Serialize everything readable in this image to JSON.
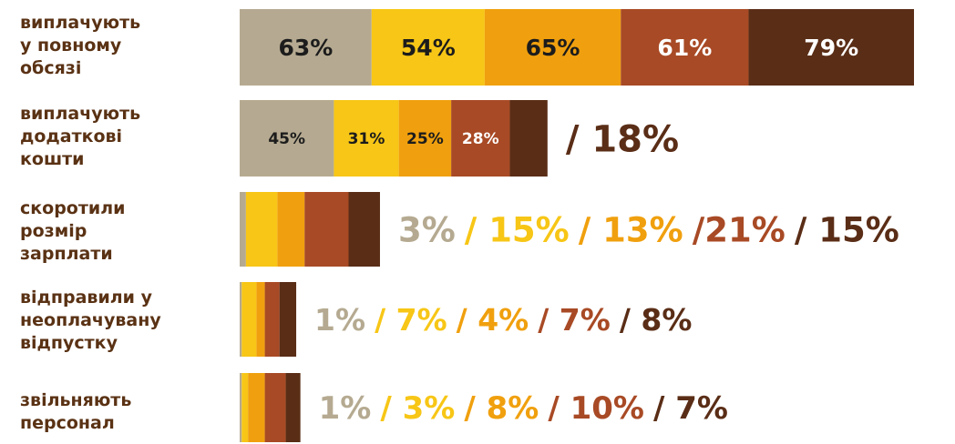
{
  "chart_data": {
    "type": "bar",
    "orientation": "horizontal",
    "stacked": true,
    "colors": [
      "#b5aa91",
      "#f7c616",
      "#f0a00e",
      "#a84a25",
      "#5a2d16"
    ],
    "categories": [
      [
        "виплачують",
        "у повному",
        "обсязі"
      ],
      [
        "виплачують",
        "додаткові",
        "кошти"
      ],
      [
        "скоротили",
        "розмір",
        "зарплати"
      ],
      [
        "відправили у",
        "неоплачувану",
        "відпустку"
      ],
      [
        "звільняють",
        "персонал"
      ]
    ],
    "rows": [
      {
        "values": [
          63,
          54,
          65,
          61,
          79
        ],
        "labels": [
          "63%",
          "54%",
          "65%",
          "61%",
          "79%"
        ],
        "labels_inside": true
      },
      {
        "values": [
          45,
          31,
          25,
          28,
          18
        ],
        "labels": [
          "45%",
          "31%",
          "25%",
          "28%",
          "/ 18%"
        ],
        "labels_inside": [
          true,
          true,
          true,
          true,
          false
        ]
      },
      {
        "values": [
          3,
          15,
          13,
          21,
          15
        ],
        "labels": [
          "3%",
          "/ 15%",
          "/ 13%",
          "/21%",
          "/ 15%"
        ],
        "labels_inside": false
      },
      {
        "values": [
          1,
          7,
          4,
          7,
          8
        ],
        "labels": [
          "1%",
          "/ 7%",
          "/ 4%",
          "/ 7%",
          "/ 8%"
        ],
        "labels_inside": false
      },
      {
        "values": [
          1,
          3,
          8,
          10,
          7
        ],
        "labels": [
          "1%",
          "/ 3%",
          "/ 8%",
          "/ 10%",
          "/ 7%"
        ],
        "labels_inside": false
      }
    ]
  }
}
